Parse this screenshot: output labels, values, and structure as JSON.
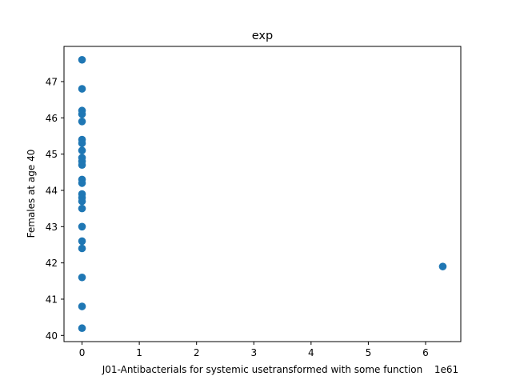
{
  "chart_data": {
    "type": "scatter",
    "title": "exp",
    "xlabel": "J01-Antibacterials for systemic usetransformed with some function",
    "ylabel": "Females at age 40",
    "x_offset_text": "1e61",
    "xlim": [
      -0.315,
      6.615
    ],
    "ylim": [
      39.83,
      47.97
    ],
    "x_ticks": [
      0,
      1,
      2,
      3,
      4,
      5,
      6
    ],
    "x_tick_labels": [
      "0",
      "1",
      "2",
      "3",
      "4",
      "5",
      "6"
    ],
    "y_ticks": [
      40,
      41,
      42,
      43,
      44,
      45,
      46,
      47
    ],
    "y_tick_labels": [
      "40",
      "41",
      "42",
      "43",
      "44",
      "45",
      "46",
      "47"
    ],
    "grid": false,
    "color": "#1f77b4",
    "points": [
      {
        "x": 0,
        "y": 47.6
      },
      {
        "x": 0,
        "y": 46.8
      },
      {
        "x": 0,
        "y": 46.2
      },
      {
        "x": 0,
        "y": 46.1
      },
      {
        "x": 0,
        "y": 45.9
      },
      {
        "x": 0,
        "y": 45.4
      },
      {
        "x": 0,
        "y": 45.3
      },
      {
        "x": 0,
        "y": 45.1
      },
      {
        "x": 0,
        "y": 44.9
      },
      {
        "x": 0,
        "y": 44.8
      },
      {
        "x": 0,
        "y": 44.7
      },
      {
        "x": 0,
        "y": 44.3
      },
      {
        "x": 0,
        "y": 44.2
      },
      {
        "x": 0,
        "y": 43.9
      },
      {
        "x": 0,
        "y": 43.8
      },
      {
        "x": 0,
        "y": 43.7
      },
      {
        "x": 0,
        "y": 43.5
      },
      {
        "x": 0,
        "y": 43.0
      },
      {
        "x": 0,
        "y": 42.6
      },
      {
        "x": 0,
        "y": 42.4
      },
      {
        "x": 0,
        "y": 41.6
      },
      {
        "x": 0,
        "y": 40.8
      },
      {
        "x": 0,
        "y": 40.2
      },
      {
        "x": 6.3,
        "y": 41.9
      }
    ]
  }
}
